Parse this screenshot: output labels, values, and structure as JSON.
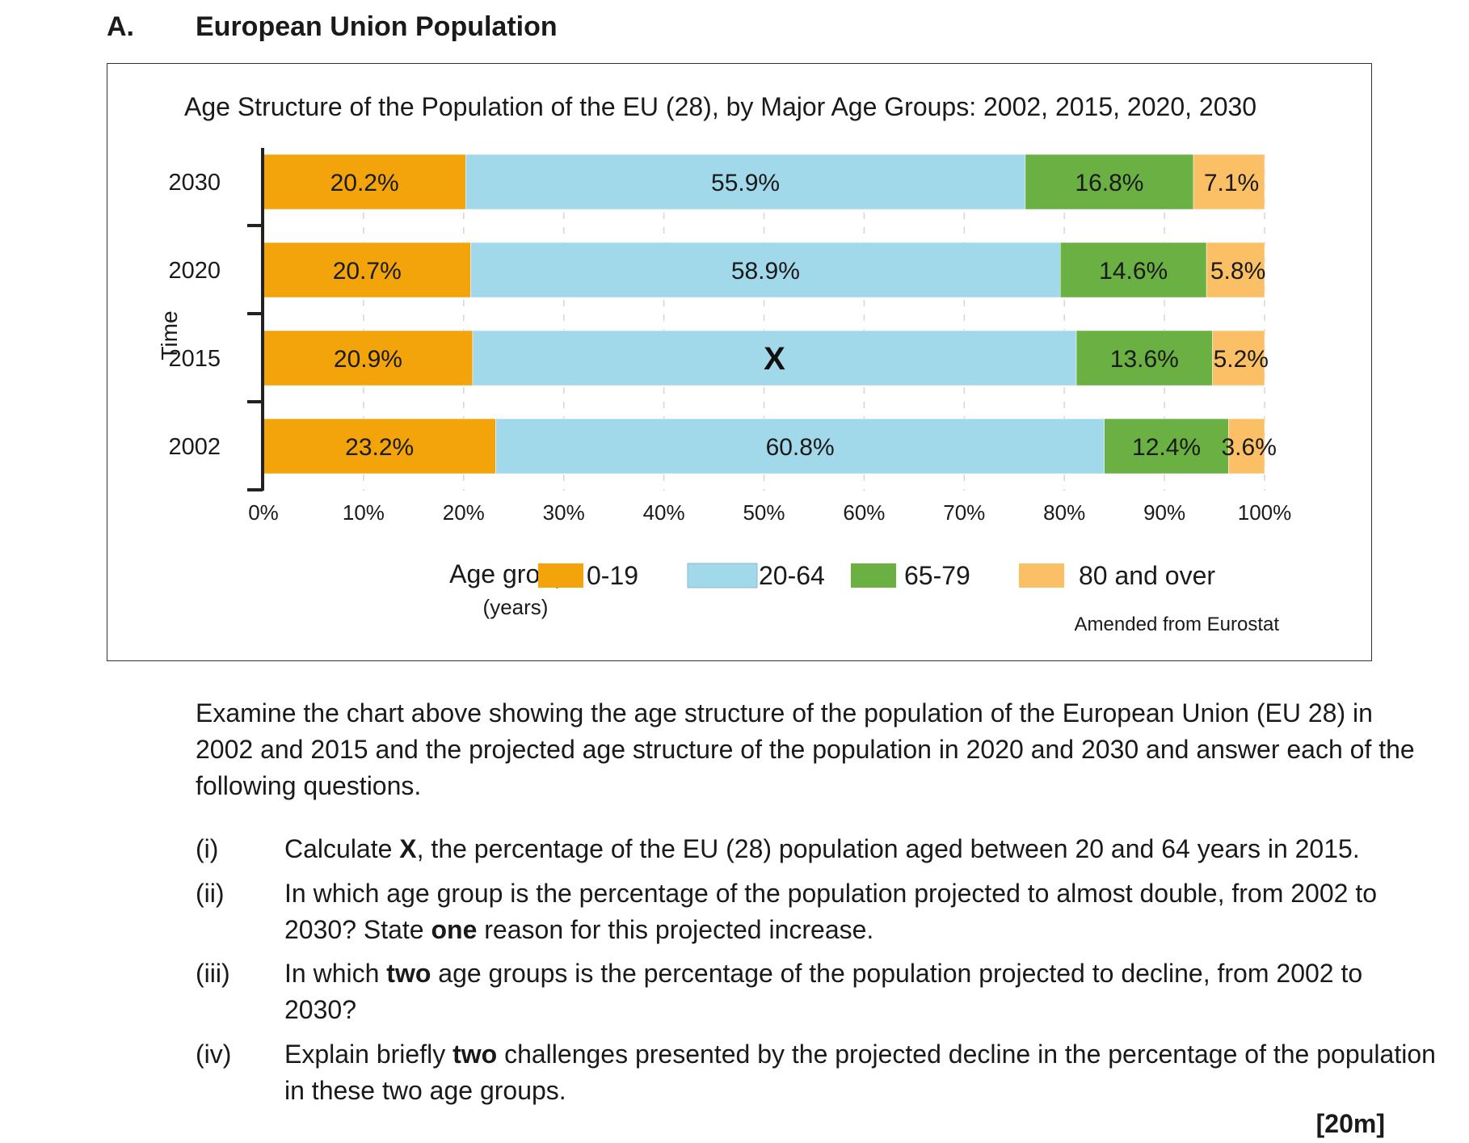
{
  "section": {
    "letter": "A.",
    "title": "European Union Population"
  },
  "chart_data": {
    "type": "bar",
    "orientation": "horizontal",
    "stacked": true,
    "title": "Age Structure of the Population of the EU (28), by Major Age Groups: 2002, 2015, 2020, 2030",
    "ylabel": "Time",
    "xlabel": "",
    "xlim": [
      0,
      100
    ],
    "x_ticks": [
      "0%",
      "10%",
      "20%",
      "30%",
      "40%",
      "50%",
      "60%",
      "70%",
      "80%",
      "90%",
      "100%"
    ],
    "categories": [
      "2030",
      "2020",
      "2015",
      "2002"
    ],
    "series": [
      {
        "name": "0-19",
        "color": "#f2a40a",
        "values": [
          20.2,
          20.7,
          20.9,
          23.2
        ],
        "labels": [
          "20.2%",
          "20.7%",
          "20.9%",
          "23.2%"
        ]
      },
      {
        "name": "20-64",
        "color": "#a2d9ea",
        "values": [
          55.9,
          58.9,
          60.3,
          60.8
        ],
        "labels": [
          "55.9%",
          "58.9%",
          "X",
          "60.8%"
        ]
      },
      {
        "name": "65-79",
        "color": "#6ab043",
        "values": [
          16.8,
          14.6,
          13.6,
          12.4
        ],
        "labels": [
          "16.8%",
          "14.6%",
          "13.6%",
          "12.4%"
        ]
      },
      {
        "name": "80 and over",
        "color": "#fbc066",
        "values": [
          7.1,
          5.8,
          5.2,
          3.6
        ],
        "labels": [
          "7.1%",
          "5.8%",
          "5.2%",
          "3.6%"
        ]
      }
    ],
    "legend": {
      "title": "Age groups",
      "subtitle": "(years)",
      "position": "bottom"
    },
    "source": "Amended from Eurostat"
  },
  "intro": "Examine the chart above showing the age structure of the population of the European Union (EU 28) in 2002 and 2015 and the projected age structure of the population in 2020 and 2030 and answer each of the following questions.",
  "questions": [
    {
      "num": "(i)",
      "parts": [
        "Calculate ",
        "X",
        ", the percentage of the EU (28) population aged between 20 and 64 years in 2015."
      ]
    },
    {
      "num": "(ii)",
      "parts": [
        "In which age group is the percentage of the population projected to almost double, from 2002 to 2030?  State ",
        "one",
        " reason for this projected increase."
      ]
    },
    {
      "num": "(iii)",
      "parts": [
        "In which ",
        "two",
        " age groups is the percentage of the population projected to decline, from 2002 to 2030?"
      ]
    },
    {
      "num": "(iv)",
      "parts": [
        "Explain briefly ",
        "two",
        " challenges presented by the projected decline in the percentage of the population in these two age groups."
      ]
    }
  ],
  "marks": "[20m]"
}
